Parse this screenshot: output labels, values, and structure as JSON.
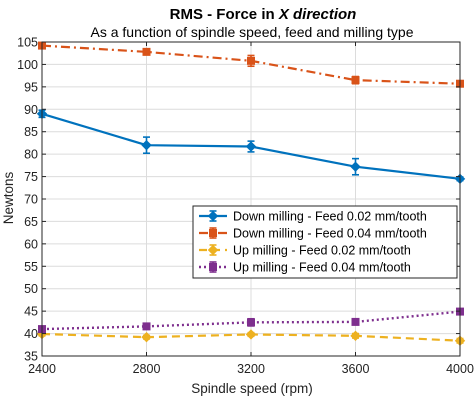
{
  "chart_data": {
    "type": "line",
    "title_prefix": "RMS - Force in ",
    "title_italic": "X direction",
    "subtitle": "As a function of spindle speed, feed and milling type",
    "xlabel": "Spindle speed (rpm)",
    "ylabel": "Newtons",
    "x": [
      2400,
      2800,
      3200,
      3600,
      4000
    ],
    "xlim": [
      2400,
      4000
    ],
    "ylim": [
      35,
      105
    ],
    "xticks": [
      "2400",
      "2800",
      "3200",
      "3600",
      "4000"
    ],
    "yticks": [
      "35",
      "40",
      "45",
      "50",
      "55",
      "60",
      "65",
      "70",
      "75",
      "80",
      "85",
      "90",
      "95",
      "100",
      "105"
    ],
    "grid": true,
    "legend_position": "center-right",
    "series": [
      {
        "name": "Down milling - Feed 0.02 mm/tooth",
        "color": "#0072BD",
        "style": "solid",
        "marker": "diamond",
        "values": [
          89.0,
          82.0,
          81.7,
          77.2,
          74.5
        ],
        "errors": [
          0.8,
          1.8,
          1.2,
          1.8,
          0.4
        ]
      },
      {
        "name": "Down milling - Feed 0.04 mm/tooth",
        "color": "#D95319",
        "style": "dashdot",
        "marker": "square",
        "values": [
          104.2,
          102.8,
          100.8,
          96.5,
          95.7
        ],
        "errors": [
          0.4,
          0.6,
          1.2,
          0.8,
          0.4
        ]
      },
      {
        "name": "Up milling - Feed 0.02 mm/tooth",
        "color": "#EDB120",
        "style": "dashed",
        "marker": "diamond",
        "values": [
          39.9,
          39.2,
          39.8,
          39.5,
          38.4
        ],
        "errors": [
          0.4,
          0.4,
          0.4,
          0.5,
          0.5
        ]
      },
      {
        "name": "Up milling - Feed 0.04 mm/tooth",
        "color": "#7E2F8E",
        "style": "dotted",
        "marker": "square",
        "values": [
          41.0,
          41.6,
          42.5,
          42.6,
          44.9
        ],
        "errors": [
          0.4,
          0.4,
          0.8,
          0.5,
          0.5
        ]
      }
    ]
  }
}
